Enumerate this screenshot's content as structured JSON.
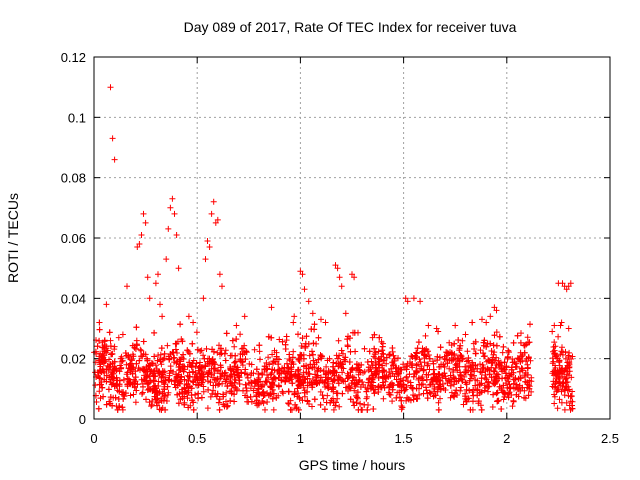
{
  "chart_data": {
    "type": "scatter",
    "title": "Day 089 of 2017, Rate Of TEC Index for receiver tuva",
    "xlabel": "GPS time / hours",
    "ylabel": "ROTI / TECUs",
    "xlim": [
      0,
      2.5
    ],
    "ylim": [
      0,
      0.12
    ],
    "x_ticks": [
      0,
      0.5,
      1,
      1.5,
      2,
      2.5
    ],
    "x_tick_labels": [
      "0",
      "0.5",
      "1",
      "1.5",
      "2",
      "2.5"
    ],
    "y_ticks": [
      0,
      0.02,
      0.04,
      0.06,
      0.08,
      0.1,
      0.12
    ],
    "y_tick_labels": [
      "0",
      "0.02",
      "0.04",
      "0.06",
      "0.08",
      "0.1",
      "0.12"
    ],
    "grid": true,
    "marker": "+",
    "marker_color": "#ff0000",
    "series": [
      {
        "points": [
          [
            0.08,
            0.11
          ],
          [
            0.09,
            0.093
          ],
          [
            0.1,
            0.086
          ],
          [
            0.06,
            0.038
          ],
          [
            0.08,
            0.026
          ],
          [
            0.1,
            0.024
          ],
          [
            0.12,
            0.027
          ],
          [
            0.14,
            0.028
          ],
          [
            0.16,
            0.044
          ],
          [
            0.21,
            0.057
          ],
          [
            0.22,
            0.058
          ],
          [
            0.23,
            0.061
          ],
          [
            0.24,
            0.068
          ],
          [
            0.25,
            0.065
          ],
          [
            0.26,
            0.047
          ],
          [
            0.27,
            0.04
          ],
          [
            0.3,
            0.045
          ],
          [
            0.31,
            0.048
          ],
          [
            0.32,
            0.038
          ],
          [
            0.33,
            0.034
          ],
          [
            0.35,
            0.053
          ],
          [
            0.36,
            0.063
          ],
          [
            0.37,
            0.07
          ],
          [
            0.38,
            0.073
          ],
          [
            0.39,
            0.068
          ],
          [
            0.4,
            0.061
          ],
          [
            0.41,
            0.05
          ],
          [
            0.46,
            0.034
          ],
          [
            0.48,
            0.032
          ],
          [
            0.53,
            0.04
          ],
          [
            0.54,
            0.053
          ],
          [
            0.55,
            0.059
          ],
          [
            0.56,
            0.057
          ],
          [
            0.57,
            0.068
          ],
          [
            0.58,
            0.072
          ],
          [
            0.59,
            0.065
          ],
          [
            0.6,
            0.066
          ],
          [
            0.61,
            0.048
          ],
          [
            0.62,
            0.044
          ],
          [
            0.69,
            0.031
          ],
          [
            0.73,
            0.034
          ],
          [
            0.86,
            0.037
          ],
          [
            0.97,
            0.034
          ],
          [
            1.0,
            0.049
          ],
          [
            1.01,
            0.048
          ],
          [
            1.02,
            0.043
          ],
          [
            1.04,
            0.039
          ],
          [
            1.06,
            0.035
          ],
          [
            1.1,
            0.033
          ],
          [
            1.17,
            0.051
          ],
          [
            1.18,
            0.05
          ],
          [
            1.19,
            0.047
          ],
          [
            1.2,
            0.044
          ],
          [
            1.22,
            0.035
          ],
          [
            1.25,
            0.048
          ],
          [
            1.26,
            0.047
          ],
          [
            1.35,
            0.027
          ],
          [
            1.4,
            0.025
          ],
          [
            1.51,
            0.04
          ],
          [
            1.52,
            0.039
          ],
          [
            1.55,
            0.04
          ],
          [
            1.58,
            0.039
          ],
          [
            1.62,
            0.031
          ],
          [
            1.66,
            0.03
          ],
          [
            1.75,
            0.031
          ],
          [
            1.8,
            0.028
          ],
          [
            1.84,
            0.025
          ],
          [
            1.88,
            0.033
          ],
          [
            1.9,
            0.032
          ],
          [
            1.92,
            0.034
          ],
          [
            1.94,
            0.037
          ],
          [
            1.95,
            0.036
          ],
          [
            1.98,
            0.022
          ],
          [
            2.06,
            0.02
          ],
          [
            2.1,
            0.018
          ],
          [
            2.22,
            0.029
          ],
          [
            2.23,
            0.031
          ],
          [
            2.25,
            0.045
          ],
          [
            2.26,
            0.031
          ],
          [
            2.27,
            0.045
          ],
          [
            2.28,
            0.044
          ],
          [
            2.29,
            0.043
          ],
          [
            2.3,
            0.044
          ],
          [
            2.31,
            0.045
          ],
          [
            2.3,
            0.03
          ]
        ]
      }
    ],
    "dense_band": {
      "segments": [
        [
          0.0,
          2.12
        ],
        [
          2.22,
          2.32
        ]
      ],
      "y_center": 0.014,
      "y_spread": 0.011,
      "y_floor": 0.003,
      "y_ceiling": 0.032,
      "points_per_hour": 1400
    }
  }
}
